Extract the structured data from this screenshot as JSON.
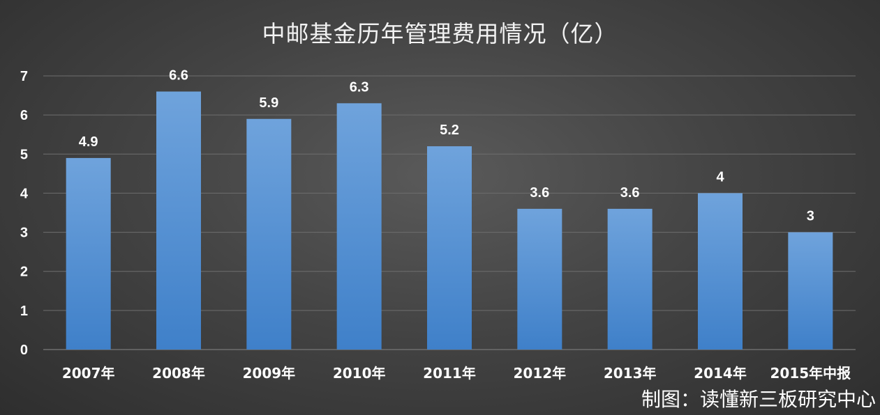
{
  "chart_data": {
    "type": "bar",
    "title": "中邮基金历年管理费用情况（亿）",
    "xlabel": "",
    "ylabel": "",
    "categories": [
      "2007年",
      "2008年",
      "2009年",
      "2010年",
      "2011年",
      "2012年",
      "2013年",
      "2014年",
      "2015年中报"
    ],
    "values": [
      4.9,
      6.6,
      5.9,
      6.3,
      5.2,
      3.6,
      3.6,
      4,
      3
    ],
    "value_labels": [
      "4.9",
      "6.6",
      "5.9",
      "6.3",
      "5.2",
      "3.6",
      "3.6",
      "4",
      "3"
    ],
    "ylim": [
      0,
      7
    ],
    "yticks": [
      "0",
      "1",
      "2",
      "3",
      "4",
      "5",
      "6",
      "7"
    ],
    "grid": true,
    "legend": "none"
  },
  "credit": "制图：读懂新三板研究中心",
  "colors": {
    "bar_top": "#6fa3dc",
    "bar_bottom": "#3f80c9",
    "grid": "#6e6e6e",
    "text": "#ffffff"
  }
}
